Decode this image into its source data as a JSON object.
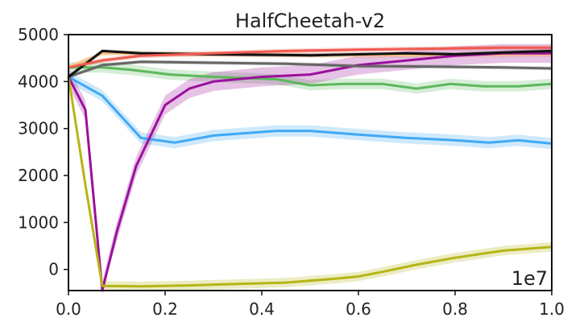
{
  "chart_data": {
    "type": "line",
    "title": "HalfCheetah-v2",
    "x_multiplier_label": "1e7",
    "xlim": [
      0.0,
      1.0
    ],
    "ylim": [
      -450,
      5000
    ],
    "xticks": [
      "0.0",
      "0.2",
      "0.4",
      "0.6",
      "0.8",
      "1.0"
    ],
    "xtick_values": [
      0.0,
      0.2,
      0.4,
      0.6,
      0.8,
      1.0
    ],
    "yticks": [
      "0",
      "1000",
      "2000",
      "3000",
      "4000",
      "5000"
    ],
    "ytick_values": [
      0,
      1000,
      2000,
      3000,
      4000,
      5000
    ],
    "grid": false,
    "series": [
      {
        "color": "#f5bf82",
        "band": 60,
        "points": [
          [
            0.0,
            4300
          ],
          [
            0.07,
            4600
          ],
          [
            0.15,
            4600
          ],
          [
            0.3,
            4580
          ],
          [
            0.5,
            4560
          ],
          [
            0.7,
            4560
          ],
          [
            0.9,
            4570
          ],
          [
            1.0,
            4580
          ]
        ]
      },
      {
        "color": "#3fa9f5",
        "band": 120,
        "points": [
          [
            0.0,
            4100
          ],
          [
            0.07,
            3700
          ],
          [
            0.15,
            2800
          ],
          [
            0.22,
            2700
          ],
          [
            0.3,
            2850
          ],
          [
            0.43,
            2950
          ],
          [
            0.5,
            2950
          ],
          [
            0.6,
            2870
          ],
          [
            0.7,
            2800
          ],
          [
            0.8,
            2750
          ],
          [
            0.87,
            2700
          ],
          [
            0.93,
            2750
          ],
          [
            1.0,
            2680
          ]
        ]
      },
      {
        "color": "#5cb85c",
        "band": 110,
        "points": [
          [
            0.0,
            4300
          ],
          [
            0.07,
            4300
          ],
          [
            0.13,
            4250
          ],
          [
            0.21,
            4150
          ],
          [
            0.3,
            4100
          ],
          [
            0.43,
            4050
          ],
          [
            0.5,
            3920
          ],
          [
            0.57,
            3950
          ],
          [
            0.65,
            3950
          ],
          [
            0.72,
            3850
          ],
          [
            0.79,
            3950
          ],
          [
            0.86,
            3900
          ],
          [
            0.93,
            3900
          ],
          [
            1.0,
            3950
          ]
        ]
      },
      {
        "color": "#9b109b",
        "band": 200,
        "points": [
          [
            0.0,
            4100
          ],
          [
            0.035,
            3400
          ],
          [
            0.07,
            -450
          ],
          [
            0.1,
            800
          ],
          [
            0.14,
            2200
          ],
          [
            0.2,
            3500
          ],
          [
            0.25,
            3850
          ],
          [
            0.3,
            4000
          ],
          [
            0.4,
            4100
          ],
          [
            0.5,
            4150
          ],
          [
            0.6,
            4350
          ],
          [
            0.7,
            4450
          ],
          [
            0.8,
            4550
          ],
          [
            0.9,
            4600
          ],
          [
            1.0,
            4600
          ]
        ]
      },
      {
        "color": "#b5b515",
        "band": 100,
        "points": [
          [
            0.0,
            4100
          ],
          [
            0.035,
            1800
          ],
          [
            0.07,
            -350
          ],
          [
            0.15,
            -360
          ],
          [
            0.25,
            -340
          ],
          [
            0.35,
            -310
          ],
          [
            0.45,
            -280
          ],
          [
            0.55,
            -200
          ],
          [
            0.6,
            -150
          ],
          [
            0.65,
            -50
          ],
          [
            0.72,
            100
          ],
          [
            0.8,
            250
          ],
          [
            0.9,
            400
          ],
          [
            1.0,
            480
          ]
        ]
      },
      {
        "color": "#666666",
        "band": 40,
        "points": [
          [
            0.0,
            4100
          ],
          [
            0.07,
            4350
          ],
          [
            0.15,
            4420
          ],
          [
            0.3,
            4400
          ],
          [
            0.45,
            4380
          ],
          [
            0.6,
            4330
          ],
          [
            0.75,
            4320
          ],
          [
            0.9,
            4300
          ],
          [
            1.0,
            4280
          ]
        ]
      },
      {
        "color": "#111111",
        "band": 40,
        "points": [
          [
            0.0,
            4100
          ],
          [
            0.07,
            4650
          ],
          [
            0.15,
            4600
          ],
          [
            0.3,
            4580
          ],
          [
            0.5,
            4560
          ],
          [
            0.7,
            4600
          ],
          [
            0.8,
            4580
          ],
          [
            0.9,
            4620
          ],
          [
            1.0,
            4650
          ]
        ]
      },
      {
        "color": "#f05a50",
        "band": 50,
        "points": [
          [
            0.0,
            4300
          ],
          [
            0.07,
            4450
          ],
          [
            0.15,
            4550
          ],
          [
            0.3,
            4600
          ],
          [
            0.45,
            4650
          ],
          [
            0.6,
            4680
          ],
          [
            0.75,
            4700
          ],
          [
            0.9,
            4720
          ],
          [
            1.0,
            4720
          ]
        ]
      }
    ]
  }
}
